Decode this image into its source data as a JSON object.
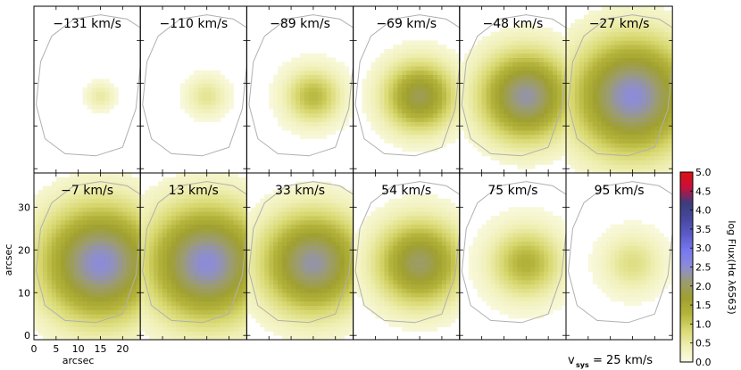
{
  "chart_data": {
    "type": "heatmap",
    "description": "Channel maps of log H-alpha flux in velocity slices",
    "panel_labels": [
      "−131 km/s",
      "−110 km/s",
      "−89 km/s",
      "−69 km/s",
      "−48 km/s",
      "−27 km/s",
      "−7 km/s",
      "13 km/s",
      "33 km/s",
      "54 km/s",
      "75 km/s",
      "95 km/s"
    ],
    "velocities_kms": [
      -131,
      -110,
      -89,
      -69,
      -48,
      -27,
      -7,
      13,
      33,
      54,
      75,
      95
    ],
    "peak_log_flux": [
      0.5,
      0.6,
      1.2,
      1.9,
      2.3,
      2.5,
      2.5,
      2.5,
      2.3,
      2.0,
      1.3,
      0.7
    ],
    "blob_radius_arcsec": [
      3.5,
      5.0,
      7.0,
      9.0,
      11.5,
      15.0,
      15.0,
      15.0,
      13.0,
      11.0,
      9.0,
      7.5
    ],
    "center_arcsec": [
      15,
      17
    ],
    "x_axis": {
      "label": "arcsec",
      "ticks": [
        0,
        5,
        10,
        15,
        20
      ],
      "range": [
        0,
        24
      ]
    },
    "y_axis": {
      "label": "arcsec",
      "ticks": [
        0,
        10,
        20,
        30
      ],
      "range": [
        -1,
        38
      ]
    },
    "colorbar": {
      "label": "log Flux(Hα λ6563)",
      "ticks": [
        "0.0",
        "0.5",
        "1.0",
        "1.5",
        "2.0",
        "2.5",
        "3.0",
        "3.5",
        "4.0",
        "4.5",
        "5.0"
      ],
      "range": [
        0.0,
        5.0
      ]
    },
    "vsys_label": "= 25 km/s",
    "colors": {
      "scale": [
        "#fbfbe6",
        "#eeeeb0",
        "#d8d870",
        "#b4b43c",
        "#a0a030",
        "#9c9c70",
        "#8c8cd8",
        "#7878f0",
        "#5c5cc8",
        "#4848a0",
        "#3c3c7c",
        "#c8103c",
        "#e01010"
      ],
      "contour": "#b0b0b0"
    }
  }
}
